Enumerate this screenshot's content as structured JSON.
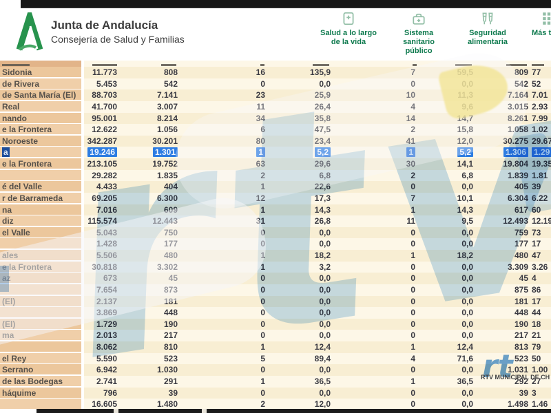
{
  "header": {
    "agency": "Junta de Andalucía",
    "department": "Consejería de Salud y Familias",
    "nav": [
      {
        "label": "Salud a lo largo\nde la vida",
        "icon": "book-cross-icon"
      },
      {
        "label": "Sistema\nsanitario\npúblico",
        "icon": "medical-bag-icon"
      },
      {
        "label": "Seguridad\nalimentaria",
        "icon": "glasses-icon"
      },
      {
        "label": "Más t",
        "icon": "grid-icon",
        "clipped": true
      }
    ]
  },
  "table": {
    "note": "municipality column clipped at left edge; last column clipped at right edge",
    "rows": [
      {
        "name": "Sidonia",
        "values": [
          "11.773",
          "808",
          "16",
          "135,9",
          "7",
          "59,5",
          "809",
          "77"
        ]
      },
      {
        "name": "de Rivera",
        "values": [
          "5.453",
          "542",
          "0",
          "0,0",
          "0",
          "0,0",
          "542",
          "52"
        ]
      },
      {
        "name": "de Santa María (El)",
        "values": [
          "88.703",
          "7.141",
          "23",
          "25,9",
          "10",
          "11,3",
          "7.164",
          "7.01"
        ]
      },
      {
        "name": "Real",
        "values": [
          "41.700",
          "3.007",
          "11",
          "26,4",
          "4",
          "9,6",
          "3.015",
          "2.93"
        ]
      },
      {
        "name": "nando",
        "values": [
          "95.001",
          "8.214",
          "34",
          "35,8",
          "14",
          "14,7",
          "8.261",
          "7.99"
        ]
      },
      {
        "name": "e la Frontera",
        "values": [
          "12.622",
          "1.056",
          "6",
          "47,5",
          "2",
          "15,8",
          "1.058",
          "1.02"
        ]
      },
      {
        "name": "Noroeste",
        "district": true,
        "values": [
          "342.287",
          "30.201",
          "80",
          "23,4",
          "41",
          "12,0",
          "30.275",
          "29.67"
        ]
      },
      {
        "name": "a",
        "highlighted": true,
        "values": [
          "19.246",
          "1.301",
          "1",
          "5,2",
          "1",
          "5,2",
          "1.306",
          "1.29"
        ]
      },
      {
        "name": "e la Frontera",
        "values": [
          "213.105",
          "19.752",
          "63",
          "29,6",
          "30",
          "14,1",
          "19.804",
          "19.35"
        ]
      },
      {
        "name": "",
        "values": [
          "29.282",
          "1.835",
          "2",
          "6,8",
          "2",
          "6,8",
          "1.839",
          "1.81"
        ]
      },
      {
        "name": "é del Valle",
        "values": [
          "4.433",
          "404",
          "1",
          "22,6",
          "0",
          "0,0",
          "405",
          "39"
        ]
      },
      {
        "name": "r de Barrameda",
        "values": [
          "69.205",
          "6.300",
          "12",
          "17,3",
          "7",
          "10,1",
          "6.304",
          "6.22"
        ]
      },
      {
        "name": "na",
        "values": [
          "7.016",
          "609",
          "1",
          "14,3",
          "1",
          "14,3",
          "617",
          "60"
        ]
      },
      {
        "name": "diz",
        "district": true,
        "values": [
          "115.574",
          "12.443",
          "31",
          "26,8",
          "11",
          "9,5",
          "12.493",
          "12.19"
        ]
      },
      {
        "name": "el Valle",
        "values": [
          "5.043",
          "750",
          "0",
          "0,0",
          "0",
          "0,0",
          "759",
          "73"
        ]
      },
      {
        "name": "",
        "values": [
          "1.428",
          "177",
          "0",
          "0,0",
          "0",
          "0,0",
          "177",
          "17"
        ]
      },
      {
        "name": "ales",
        "values": [
          "5.506",
          "480",
          "1",
          "18,2",
          "1",
          "18,2",
          "480",
          "47"
        ]
      },
      {
        "name": "e la Frontera",
        "values": [
          "30.818",
          "3.302",
          "1",
          "3,2",
          "0",
          "0,0",
          "3.309",
          "3.26"
        ]
      },
      {
        "name": "az",
        "values": [
          "673",
          "45",
          "0",
          "0,0",
          "0",
          "0,0",
          "45",
          "4"
        ]
      },
      {
        "name": "",
        "values": [
          "7.654",
          "873",
          "0",
          "0,0",
          "0",
          "0,0",
          "875",
          "86"
        ]
      },
      {
        "name": "(El)",
        "values": [
          "2.137",
          "181",
          "0",
          "0,0",
          "0",
          "0,0",
          "181",
          "17"
        ]
      },
      {
        "name": "",
        "values": [
          "3.869",
          "448",
          "0",
          "0,0",
          "0",
          "0,0",
          "448",
          "44"
        ]
      },
      {
        "name": "(El)",
        "values": [
          "1.729",
          "190",
          "0",
          "0,0",
          "0",
          "0,0",
          "190",
          "18"
        ]
      },
      {
        "name": "ma",
        "values": [
          "2.013",
          "217",
          "0",
          "0,0",
          "0",
          "0,0",
          "217",
          "21"
        ]
      },
      {
        "name": "",
        "values": [
          "8.062",
          "810",
          "1",
          "12,4",
          "1",
          "12,4",
          "813",
          "79"
        ]
      },
      {
        "name": "el Rey",
        "values": [
          "5.590",
          "523",
          "5",
          "89,4",
          "4",
          "71,6",
          "523",
          "50"
        ]
      },
      {
        "name": "Serrano",
        "values": [
          "6.942",
          "1.030",
          "0",
          "0,0",
          "0",
          "0,0",
          "1.031",
          "1.00"
        ]
      },
      {
        "name": "de las Bodegas",
        "values": [
          "2.741",
          "291",
          "1",
          "36,5",
          "1",
          "36,5",
          "292",
          "27"
        ]
      },
      {
        "name": "háquime",
        "values": [
          "796",
          "39",
          "0",
          "0,0",
          "0",
          "0,0",
          "39",
          "3"
        ]
      },
      {
        "name": "",
        "values": [
          "16.605",
          "1.480",
          "2",
          "12,0",
          "0",
          "0,0",
          "1.498",
          "1.46"
        ]
      }
    ]
  },
  "watermark": {
    "brand_letters": "rtv",
    "brand_label": "RTV MUNICIPAL DE CH",
    "letters_color": "#8fc0e8",
    "logo_color": "#5b9bd7"
  },
  "colors": {
    "accent_green": "#0e7a4e",
    "logo_green": "#27934d",
    "name_column_tan": "#ecc79c",
    "stripe_dark": "#f8eed3",
    "stripe_light": "#fdf7e7",
    "selection_blue": "#2d7de2",
    "selection_name_blue": "#1e4e9c"
  }
}
